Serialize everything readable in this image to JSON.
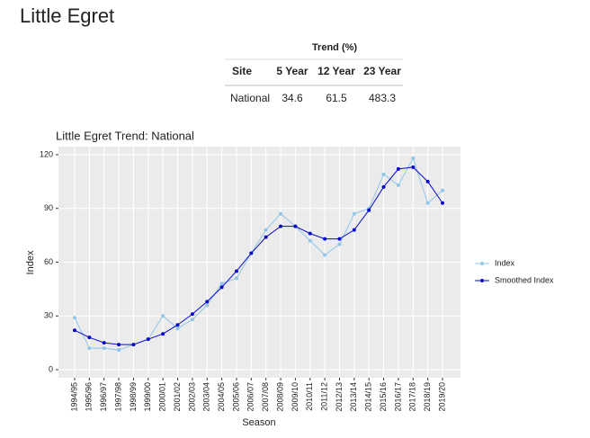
{
  "header": {
    "title": "Little Egret"
  },
  "table": {
    "title": "Trend (%)",
    "header": [
      "Site",
      "5 Year",
      "12 Year",
      "23 Year"
    ],
    "rows": [
      [
        "National",
        34.6,
        61.5,
        483.3
      ]
    ]
  },
  "chart_data": {
    "type": "line",
    "title": "Little Egret Trend: National",
    "x_label": "Season",
    "y_label": "Index",
    "categories": [
      "1994/95",
      "1995/96",
      "1996/97",
      "1997/98",
      "1998/99",
      "1999/00",
      "2000/01",
      "2001/02",
      "2002/03",
      "2003/04",
      "2004/05",
      "2005/06",
      "2006/07",
      "2007/08",
      "2008/09",
      "2009/10",
      "2010/11",
      "2011/12",
      "2012/13",
      "2013/14",
      "2014/15",
      "2015/16",
      "2016/17",
      "2017/18",
      "2018/19",
      "2019/20"
    ],
    "series": [
      {
        "name": "Index",
        "color": "#92c5e8",
        "values": [
          29,
          12,
          12,
          11,
          14,
          17,
          30,
          23,
          28,
          36,
          48,
          51,
          65,
          78,
          87,
          80,
          72,
          64,
          70,
          87,
          90,
          109,
          103,
          118,
          93,
          100
        ]
      },
      {
        "name": "Smoothed Index",
        "color": "#0a0acc",
        "values": [
          22,
          18,
          15,
          14,
          14,
          17,
          20,
          25,
          31,
          38,
          46,
          55,
          65,
          74,
          80,
          80,
          76,
          73,
          73,
          78,
          89,
          102,
          112,
          113,
          105,
          93
        ]
      }
    ],
    "ylim": [
      -4.5,
      124.5
    ],
    "yticks": [
      0,
      30,
      60,
      90,
      120
    ],
    "grid": true,
    "legend": "right"
  }
}
